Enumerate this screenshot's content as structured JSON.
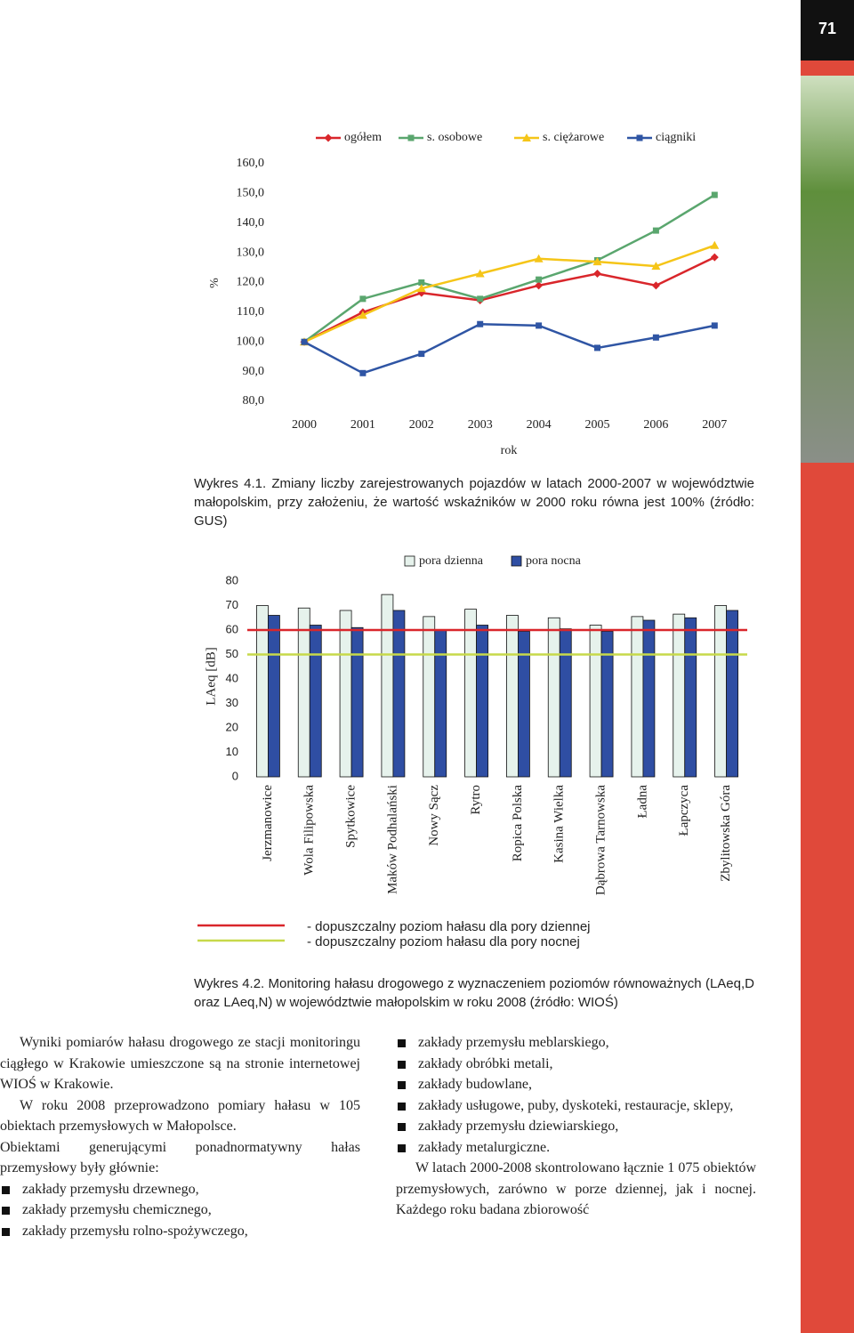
{
  "page_number": "71",
  "chart_data": [
    {
      "type": "line",
      "ylabel": "%",
      "xlabel": "rok",
      "categories": [
        "2000",
        "2001",
        "2002",
        "2003",
        "2004",
        "2005",
        "2006",
        "2007"
      ],
      "series": [
        {
          "name": "ogółem",
          "color": "#d9262b",
          "marker": "diamond",
          "values": [
            100,
            110,
            116.5,
            114,
            119,
            123,
            119,
            128.5
          ]
        },
        {
          "name": "s. osobowe",
          "color": "#5aa66e",
          "marker": "square",
          "values": [
            100,
            114.5,
            120,
            114.5,
            121,
            127.5,
            137.5,
            149.5
          ]
        },
        {
          "name": "s. ciężarowe",
          "color": "#f5c518",
          "marker": "triangle",
          "values": [
            100,
            109,
            118,
            123,
            128,
            127,
            125.5,
            132.5
          ]
        },
        {
          "name": "ciągniki",
          "color": "#2f55a4",
          "marker": "square",
          "values": [
            100,
            89.5,
            96,
            106,
            105.5,
            98,
            101.5,
            105.5
          ]
        }
      ],
      "ylim": [
        80,
        160
      ],
      "yticks": [
        {
          "value": 80,
          "label": "80,0"
        },
        {
          "value": 90,
          "label": "90,0"
        },
        {
          "value": 100,
          "label": "100,0"
        },
        {
          "value": 110,
          "label": "110,0"
        },
        {
          "value": 120,
          "label": "120,0"
        },
        {
          "value": 130,
          "label": "130,0"
        },
        {
          "value": 140,
          "label": "140,0"
        },
        {
          "value": 150,
          "label": "150,0"
        },
        {
          "value": 160,
          "label": "160,0"
        }
      ],
      "grid": false,
      "caption": "Wykres 4.1. Zmiany liczby zarejestrowanych pojazdów w latach 2000-2007 w województwie małopolskim, przy założeniu, że wartość wskaźników w 2000 roku równa jest 100% (źródło: GUS)"
    },
    {
      "type": "bar",
      "ylabel": "LAeq [dB]",
      "categories": [
        "Jerzmanowice",
        "Wola Filipowska",
        "Spytkowice",
        "Maków Podhalański",
        "Nowy Sącz",
        "Rytro",
        "Ropica Polska",
        "Kasina Wielka",
        "Dąbrowa Tarnowska",
        "Ładna",
        "Łapczyca",
        "Zbylitowska Góra"
      ],
      "series": [
        {
          "name": "pora dzienna",
          "color": "#e6f2ec",
          "values": [
            70,
            69,
            68,
            74.5,
            65.5,
            68.5,
            66,
            65,
            62,
            65.5,
            66.5,
            70
          ]
        },
        {
          "name": "pora nocna",
          "color": "#2f4ea3",
          "values": [
            66,
            62,
            61,
            68,
            60,
            62,
            59.5,
            60.5,
            59.5,
            64,
            65,
            68
          ]
        }
      ],
      "reference_lines": [
        {
          "value": 60,
          "color": "#d9262b",
          "label": "- dopuszczalny poziom hałasu dla pory dziennej"
        },
        {
          "value": 50,
          "color": "#c7d94a",
          "label": "- dopuszczalny poziom hałasu dla pory nocnej"
        }
      ],
      "ylim": [
        0,
        80
      ],
      "yticks": [
        0,
        10,
        20,
        30,
        40,
        50,
        60,
        70,
        80
      ],
      "grid": false,
      "caption": "Wykres 4.2. Monitoring hałasu drogowego z wyznaczeniem poziomów równoważnych (LAeq,D oraz LAeq,N) w województwie małopolskim w roku 2008 (źródło: WIOŚ)"
    }
  ],
  "body": {
    "left": {
      "paragraphs": [
        "Wyniki pomiarów hałasu drogowego ze stacji monitoringu ciągłego w Krakowie umieszczone są na stronie internetowej WIOŚ w Krakowie.",
        "W roku 2008 przeprowadzono pomiary hałasu w 105 obiektach przemysłowych w Małopolsce.",
        "Obiektami generującymi ponadnormatywny hałas przemysłowy były głównie:"
      ],
      "bullets": [
        "zakłady przemysłu drzewnego,",
        "zakłady przemysłu chemicznego,",
        "zakłady przemysłu rolno-spożywczego,"
      ]
    },
    "right": {
      "bullets": [
        "zakłady przemysłu meblarskiego,",
        "zakłady obróbki metali,",
        "zakłady budowlane,",
        "zakłady usługowe, puby, dyskoteki, restauracje, sklepy,",
        "zakłady przemysłu dziewiarskiego,",
        "zakłady metalurgiczne."
      ],
      "paragraph": "W latach 2000-2008 skontrolowano łącznie 1 075 obiektów przemysłowych, zarówno w porze dziennej, jak i nocnej. Każdego roku badana zbiorowość"
    }
  }
}
